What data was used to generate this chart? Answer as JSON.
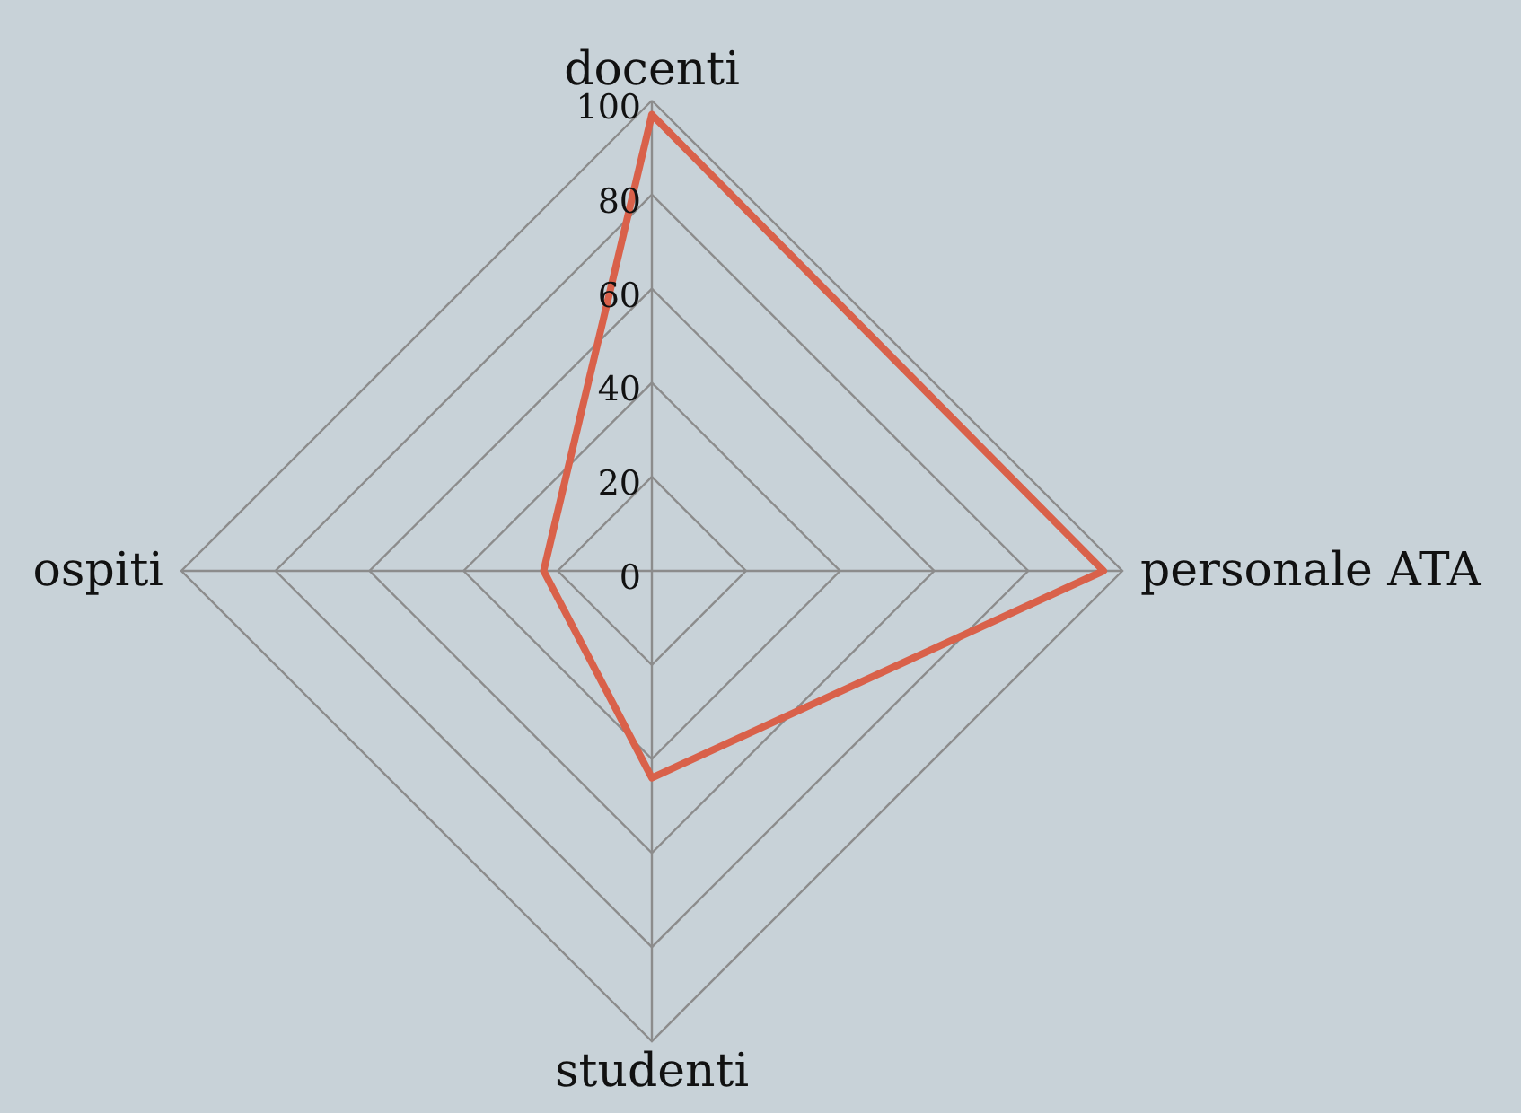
{
  "chart_data": {
    "type": "radar",
    "categories": [
      "docenti",
      "personale ATA",
      "studenti",
      "ospiti"
    ],
    "series": [
      {
        "color": "#d9614a",
        "values": [
          97,
          96,
          44,
          23
        ]
      }
    ],
    "ylim": [
      0,
      100
    ],
    "yticks": [
      0,
      20,
      40,
      60,
      80,
      100
    ],
    "grid": true
  }
}
